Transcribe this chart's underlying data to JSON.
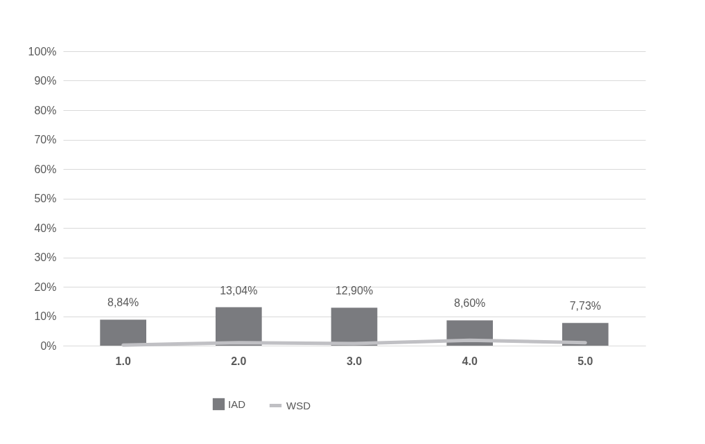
{
  "chart_data": {
    "type": "bar",
    "categories": [
      "1.0",
      "2.0",
      "3.0",
      "4.0",
      "5.0"
    ],
    "series": [
      {
        "name": "IAD",
        "color": "#7a7b7f",
        "values": [
          8.84,
          13.04,
          12.9,
          8.6,
          7.73
        ],
        "value_labels": [
          "8,84%",
          "13,04%",
          "12,90%",
          "8,60%",
          "7,73%"
        ]
      },
      {
        "name": "WSD",
        "type": "line",
        "color": "#c0c0c4",
        "values": [
          0.2,
          1.0,
          0.7,
          1.8,
          1.0
        ]
      }
    ],
    "ylim": [
      0,
      100
    ],
    "yticks": [
      {
        "value": 0,
        "label": "0%"
      },
      {
        "value": 10,
        "label": "10%"
      },
      {
        "value": 20,
        "label": "20%"
      },
      {
        "value": 30,
        "label": "30%"
      },
      {
        "value": 40,
        "label": "40%"
      },
      {
        "value": 50,
        "label": "50%"
      },
      {
        "value": 60,
        "label": "60%"
      },
      {
        "value": 70,
        "label": "70%"
      },
      {
        "value": 80,
        "label": "80%"
      },
      {
        "value": 90,
        "label": "90%"
      },
      {
        "value": 100,
        "label": "100%"
      }
    ],
    "grid": "y",
    "legend": "bottom",
    "marker": "none",
    "line_style": "solid"
  }
}
